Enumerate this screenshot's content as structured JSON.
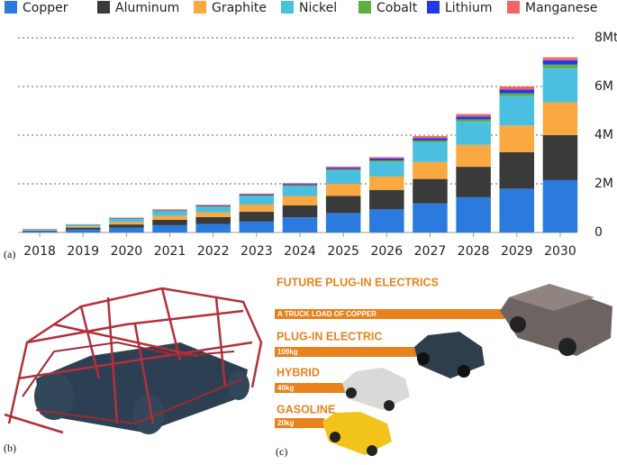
{
  "chart_data": {
    "type": "stacked_bar",
    "categories": [
      "2018",
      "2019",
      "2020",
      "2021",
      "2022",
      "2023",
      "2024",
      "2025",
      "2026",
      "2027",
      "2028",
      "2029",
      "2030"
    ],
    "series": [
      {
        "name": "Copper",
        "color": "#2b7bde",
        "values": [
          0.05,
          0.12,
          0.2,
          0.3,
          0.35,
          0.45,
          0.62,
          0.8,
          0.95,
          1.2,
          1.45,
          1.8,
          2.15
        ]
      },
      {
        "name": "Aluminum",
        "color": "#3a3a3a",
        "values": [
          0.03,
          0.08,
          0.13,
          0.22,
          0.28,
          0.4,
          0.5,
          0.7,
          0.8,
          1.0,
          1.25,
          1.5,
          1.85
        ]
      },
      {
        "name": "Graphite",
        "color": "#f9a940",
        "values": [
          0.02,
          0.05,
          0.1,
          0.17,
          0.2,
          0.3,
          0.38,
          0.5,
          0.55,
          0.7,
          0.9,
          1.1,
          1.35
        ]
      },
      {
        "name": "Nickel",
        "color": "#4bbfdf",
        "values": [
          0.03,
          0.06,
          0.12,
          0.18,
          0.22,
          0.35,
          0.4,
          0.55,
          0.6,
          0.8,
          0.95,
          1.2,
          1.4
        ]
      },
      {
        "name": "Cobalt",
        "color": "#5fae3f",
        "values": [
          0.01,
          0.01,
          0.02,
          0.03,
          0.03,
          0.03,
          0.04,
          0.05,
          0.06,
          0.08,
          0.1,
          0.12,
          0.15
        ]
      },
      {
        "name": "Lithium",
        "color": "#2438e8",
        "values": [
          0.005,
          0.01,
          0.02,
          0.02,
          0.03,
          0.04,
          0.05,
          0.06,
          0.08,
          0.1,
          0.12,
          0.15,
          0.18
        ]
      },
      {
        "name": "Manganese",
        "color": "#f26464",
        "values": [
          0.005,
          0.01,
          0.02,
          0.03,
          0.03,
          0.03,
          0.04,
          0.05,
          0.06,
          0.08,
          0.1,
          0.13,
          0.12
        ]
      }
    ],
    "ylim": [
      0,
      8
    ],
    "yticks": [
      0,
      {
        "value": 2,
        "label": "2M"
      },
      {
        "value": 4,
        "label": "4M"
      },
      {
        "value": 6,
        "label": "6M"
      },
      {
        "value": 8,
        "label": "8Mt"
      }
    ],
    "grid": true,
    "legend": "top"
  },
  "panel_labels": {
    "a": "(a)",
    "b": "(b)",
    "c": "(c)"
  },
  "panel_c": {
    "rows": [
      {
        "title": "FUTURE PLUG-IN ELECTRICS",
        "note": "A TRUCK LOAD OF COPPER"
      },
      {
        "title": "PLUG-IN ELECTRIC",
        "note": "109kg"
      },
      {
        "title": "HYBRID",
        "note": "40kg"
      },
      {
        "title": "GASOLINE",
        "note": "20kg"
      }
    ]
  }
}
